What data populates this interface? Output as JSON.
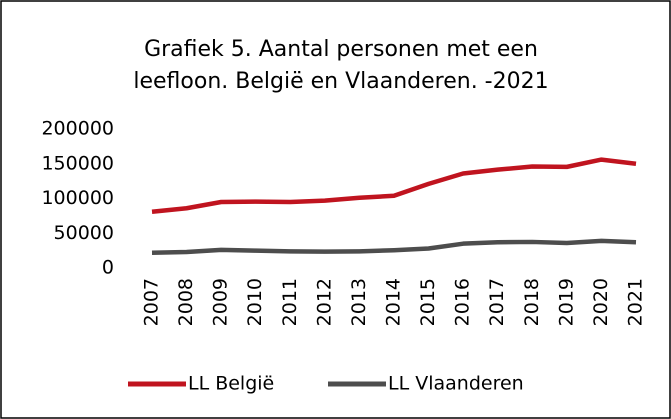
{
  "chart_data": {
    "type": "line",
    "title": [
      "Grafiek 5. Aantal personen met een",
      "leefloon. België en Vlaanderen. -2021"
    ],
    "categories": [
      "2007",
      "2008",
      "2009",
      "2010",
      "2011",
      "2012",
      "2013",
      "2014",
      "2015",
      "2016",
      "2017",
      "2018",
      "2019",
      "2020",
      "2021"
    ],
    "series": [
      {
        "name": "LL België",
        "color": "#c0141f",
        "values": [
          81000,
          86000,
          95000,
          95500,
          95000,
          97000,
          101000,
          104000,
          121000,
          136000,
          141500,
          146000,
          145500,
          156000,
          150000
        ]
      },
      {
        "name": "LL Vlaanderen",
        "color": "#4d4d4d",
        "values": [
          22000,
          23000,
          26000,
          25000,
          24000,
          23500,
          24000,
          25500,
          28000,
          35000,
          37000,
          37500,
          36000,
          39000,
          37000
        ]
      }
    ],
    "ylim": [
      0,
      200000
    ],
    "yticks": [
      0,
      50000,
      100000,
      150000,
      200000
    ],
    "grid": false,
    "legend": "bottom"
  }
}
